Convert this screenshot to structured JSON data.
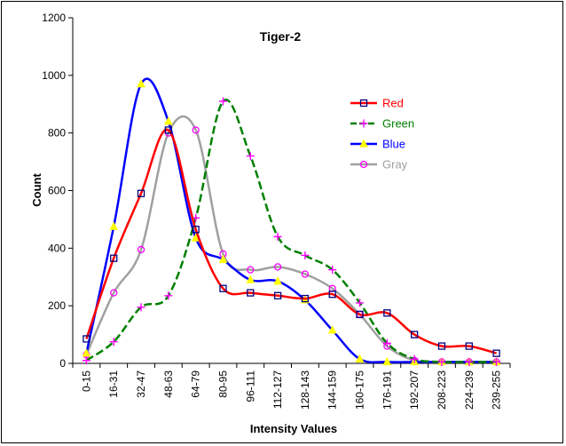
{
  "chart_data": {
    "type": "line",
    "title": "Tiger-2",
    "xlabel": "Intensity Values",
    "ylabel": "Count",
    "categories": [
      "0-15",
      "16-31",
      "32-47",
      "48-63",
      "64-79",
      "80-95",
      "96-111",
      "112-127",
      "128-143",
      "144-159",
      "160-175",
      "176-191",
      "192-207",
      "208-223",
      "224-239",
      "239-255"
    ],
    "ylim": [
      0,
      1200
    ],
    "yticks": [
      0,
      200,
      400,
      600,
      800,
      1000,
      1200
    ],
    "grid": false,
    "legend_position": "right",
    "series": [
      {
        "name": "Red",
        "color": "#ff0000",
        "marker": "square",
        "marker_color": "#000080",
        "dash": "solid",
        "values": [
          85,
          365,
          590,
          810,
          465,
          260,
          245,
          235,
          225,
          240,
          170,
          175,
          100,
          60,
          60,
          35
        ]
      },
      {
        "name": "Green",
        "color": "#008000",
        "marker": "plus",
        "marker_color": "#ff00ff",
        "dash": "dashed",
        "values": [
          10,
          75,
          195,
          235,
          505,
          910,
          720,
          440,
          375,
          325,
          210,
          70,
          15,
          5,
          5,
          5
        ]
      },
      {
        "name": "Blue",
        "color": "#0000ff",
        "marker": "triangle",
        "marker_color": "#ffff00",
        "dash": "solid",
        "values": [
          35,
          475,
          970,
          840,
          435,
          360,
          290,
          285,
          220,
          115,
          15,
          5,
          5,
          5,
          5,
          5
        ]
      },
      {
        "name": "Gray",
        "color": "#a0a0a0",
        "marker": "circle",
        "marker_color": "#ff00ff",
        "dash": "solid",
        "values": [
          30,
          245,
          395,
          800,
          810,
          380,
          325,
          335,
          310,
          260,
          170,
          60,
          10,
          5,
          5,
          5
        ]
      }
    ]
  }
}
